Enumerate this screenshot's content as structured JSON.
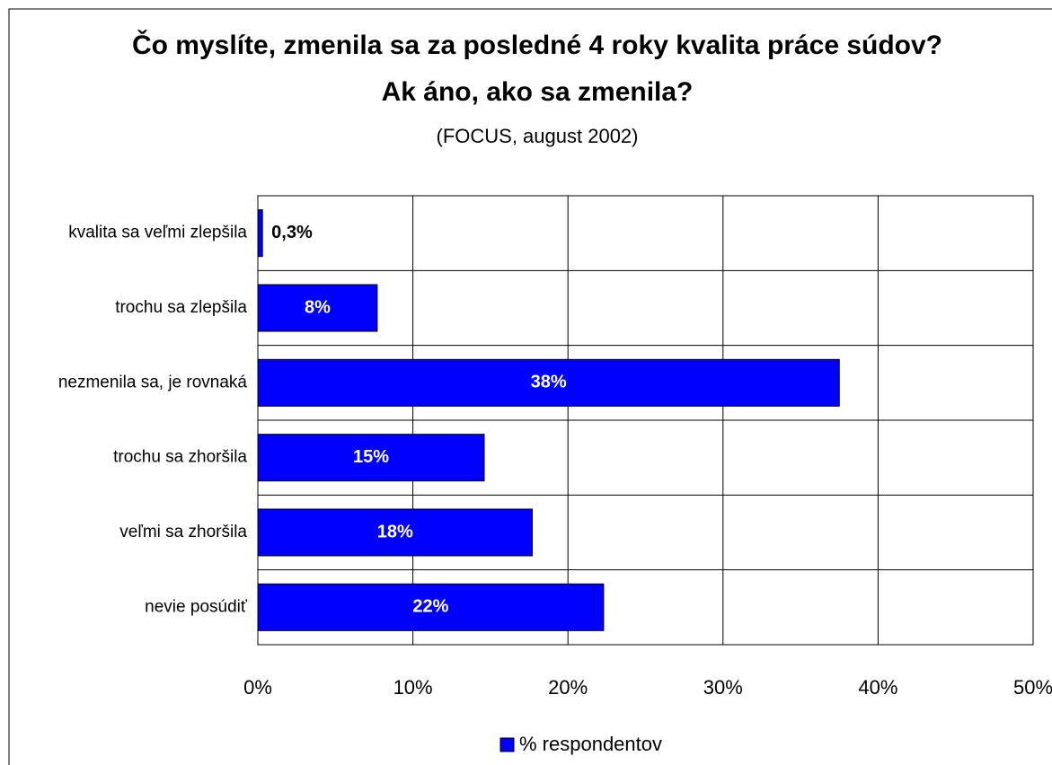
{
  "chart_data": {
    "type": "barh",
    "title": [
      "Čo myslíte, zmenila sa za posledné 4 roky kvalita práce súdov?",
      "Ak áno, ako sa zmenila?"
    ],
    "subtitle": "(FOCUS, august 2002)",
    "categories": [
      "kvalita sa veľmi zlepšila",
      "trochu sa zlepšila",
      "nezmenila sa, je rovnaká",
      "trochu sa zhoršila",
      "veľmi sa zhoršila",
      "nevie posúdiť"
    ],
    "series": [
      {
        "name": "% respondentov",
        "color": "#0000ff",
        "values": [
          0.3,
          7.7,
          37.5,
          14.6,
          17.7,
          22.3
        ],
        "value_labels": [
          "0,3%",
          "8%",
          "38%",
          "15%",
          "18%",
          "22%"
        ]
      }
    ],
    "xlim": [
      0,
      50
    ],
    "xticks": [
      {
        "value": 0,
        "label": "0%"
      },
      {
        "value": 10,
        "label": "10%"
      },
      {
        "value": 20,
        "label": "20%"
      },
      {
        "value": 30,
        "label": "30%"
      },
      {
        "value": 40,
        "label": "40%"
      },
      {
        "value": 50,
        "label": "50%"
      }
    ],
    "grid": true,
    "legend": "bottom"
  }
}
